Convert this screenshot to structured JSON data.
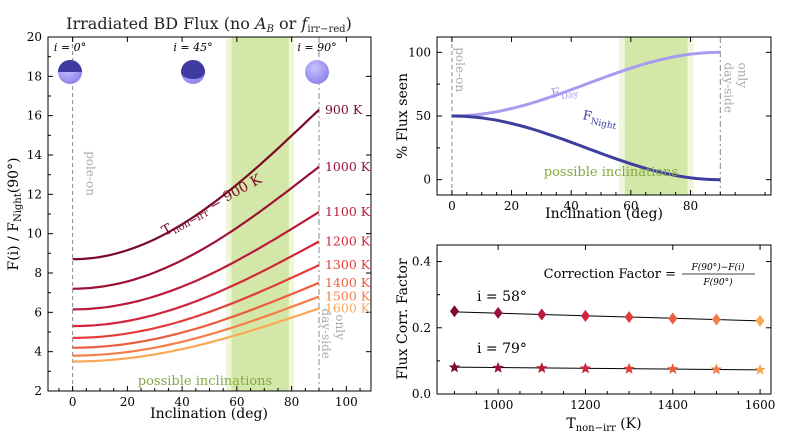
{
  "chart_data": [
    {
      "type": "line",
      "panel": "left",
      "title": "Irradiated BD Flux (no A_B or f_irr−red)",
      "title_parts": {
        "main": "Irradiated BD Flux (no ",
        "ab": "A",
        "ab_sub": "B",
        "or": " or ",
        "f": "f",
        "f_sub": "irr−red",
        "close": ")"
      },
      "xlabel": "Inclination (deg)",
      "ylabel": "F(i) / F_Night(90°)",
      "ylabel_parts": {
        "main": "F(i) / F",
        "sub": "Night",
        "tail": "(90°)"
      },
      "xlim": [
        -9,
        109
      ],
      "ylim": [
        2,
        20
      ],
      "xticks": [
        0,
        20,
        40,
        60,
        80,
        100
      ],
      "yticks": [
        2,
        4,
        6,
        8,
        10,
        12,
        14,
        16,
        18,
        20
      ],
      "inclination_band": {
        "outer": [
          56,
          81
        ],
        "inner": [
          58,
          79
        ],
        "label": "possible inclinations"
      },
      "annotations": {
        "pole_on": "pole-on",
        "day_side": "day-side",
        "only": "only"
      },
      "curve_label": {
        "prefix": "T",
        "sub": "non−irr",
        "suffix": " = 900 K"
      },
      "disk_labels": [
        "i = 0°",
        "i = 45°",
        "i = 90°"
      ],
      "series": [
        {
          "name": "900 K",
          "color": "#7a0b28",
          "start": 8.7,
          "end": 16.3
        },
        {
          "name": "1000 K",
          "color": "#9c1136",
          "start": 7.2,
          "end": 13.4
        },
        {
          "name": "1100 K",
          "color": "#bb1a3a",
          "start": 6.15,
          "end": 11.1
        },
        {
          "name": "1200 K",
          "color": "#d0253c",
          "start": 5.3,
          "end": 9.6
        },
        {
          "name": "1300 K",
          "color": "#e33d3a",
          "start": 4.7,
          "end": 8.4
        },
        {
          "name": "1400 K",
          "color": "#ec5d3e",
          "start": 4.2,
          "end": 7.5
        },
        {
          "name": "1500 K",
          "color": "#f47e49",
          "start": 3.8,
          "end": 6.8
        },
        {
          "name": "1600 K",
          "color": "#f8a857",
          "start": 3.5,
          "end": 6.2
        }
      ]
    },
    {
      "type": "line",
      "panel": "top-right",
      "xlabel": "Inclination (deg)",
      "ylabel": "% Flux seen",
      "xlim": [
        -5,
        107
      ],
      "ylim": [
        -12,
        112
      ],
      "xticks": [
        0,
        20,
        40,
        60,
        80
      ],
      "yticks": [
        0,
        50,
        100
      ],
      "inclination_band": {
        "outer": [
          56,
          81
        ],
        "inner": [
          58,
          79
        ],
        "label": "possible inclinations"
      },
      "annotations": {
        "pole_on": "pole-on",
        "day_side": "day-side",
        "only": "only"
      },
      "series": [
        {
          "name": "F_Day",
          "label_main": "F",
          "label_sub": "Day",
          "color": "#a99cf0",
          "start": 50,
          "end": 100
        },
        {
          "name": "F_Night",
          "label_main": "F",
          "label_sub": "Night",
          "color": "#3c3f9e",
          "start": 50,
          "end": 0
        }
      ]
    },
    {
      "type": "scatter",
      "panel": "bottom-right",
      "xlabel": "T_non−irr (K)",
      "xlabel_parts": {
        "main": "T",
        "sub": "non−irr",
        "tail": " (K)"
      },
      "ylabel": "Flux Corr. Factor",
      "xlim": [
        860,
        1625
      ],
      "ylim": [
        0,
        0.45
      ],
      "xticks": [
        1000,
        1200,
        1400,
        1600
      ],
      "yticks": [
        0.0,
        0.2,
        0.4
      ],
      "formula": {
        "prefix": "Correction Factor =",
        "numerator": "F(90°)−F(i)",
        "denominator": "F(90°)"
      },
      "x": [
        900,
        1000,
        1100,
        1200,
        1300,
        1400,
        1500,
        1600
      ],
      "colors": [
        "#7a0b28",
        "#9c1136",
        "#bb1a3a",
        "#d0253c",
        "#e33d3a",
        "#ec5d3e",
        "#f47e49",
        "#f8a857"
      ],
      "series": [
        {
          "name": "i = 58°",
          "marker": "diamond",
          "values": [
            0.25,
            0.245,
            0.24,
            0.236,
            0.232,
            0.228,
            0.225,
            0.221
          ],
          "fit": [
            0.248,
            0.221
          ]
        },
        {
          "name": "i = 79°",
          "marker": "star",
          "values": [
            0.08,
            0.079,
            0.078,
            0.077,
            0.076,
            0.075,
            0.074,
            0.073
          ],
          "fit": [
            0.081,
            0.073
          ]
        }
      ]
    }
  ]
}
